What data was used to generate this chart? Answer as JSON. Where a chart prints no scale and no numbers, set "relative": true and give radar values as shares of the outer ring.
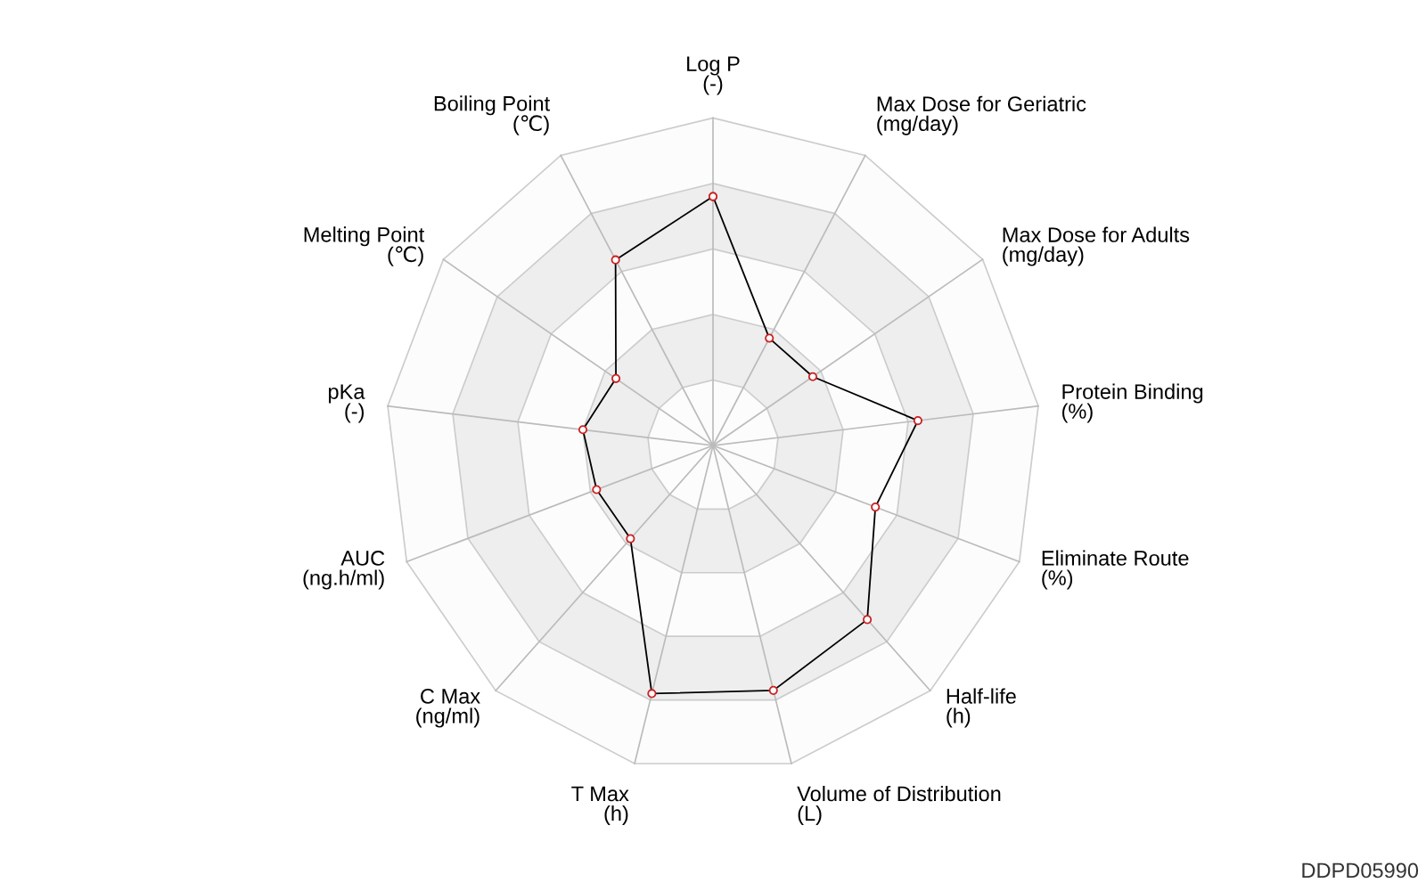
{
  "chart_data": {
    "type": "radar",
    "relative": true,
    "grid": true,
    "marker": "circle",
    "line_style": "solid",
    "categories": [
      "Log P\n(-)",
      "Max Dose for Geriatric\n(mg/day)",
      "Max Dose for Adults\n(mg/day)",
      "Protein Binding\n(%)",
      "Eliminate Route\n(%)",
      "Half-life\n(h)",
      "Volume of Distribution\n(L)",
      "T Max\n(h)",
      "C Max\n(ng/ml)",
      "AUC\n(ng.h/ml)",
      "pKa\n(-)",
      "Melting Point\n(℃)",
      "Boiling Point\n(℃)"
    ],
    "series": [
      {
        "color": "#000000",
        "values": [
          0.76,
          0.37,
          0.37,
          0.63,
          0.53,
          0.71,
          0.77,
          0.78,
          0.38,
          0.38,
          0.4,
          0.36,
          0.64
        ]
      }
    ],
    "annotations": [
      "DDPD05990"
    ]
  }
}
